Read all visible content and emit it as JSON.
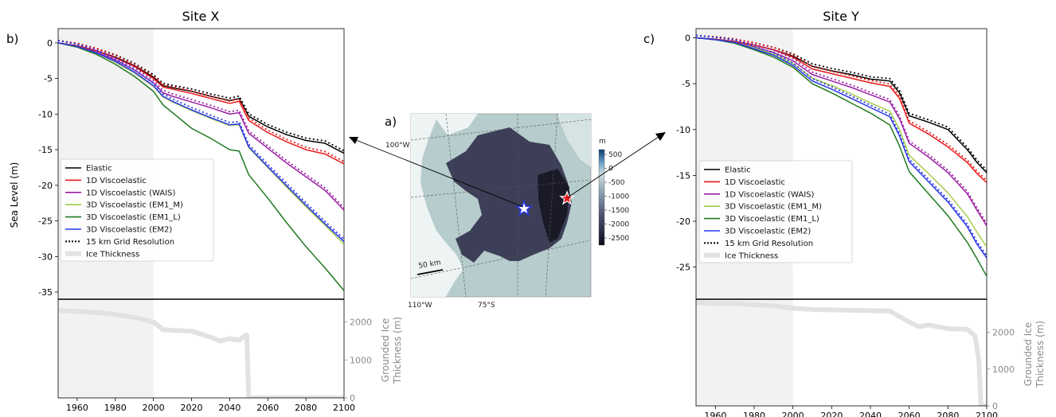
{
  "panels": {
    "b": {
      "label": "b)",
      "title": "Site X"
    },
    "a": {
      "label": "a)"
    },
    "c": {
      "label": "c)",
      "title": "Site Y"
    }
  },
  "ylabel": "Sea Level (m)",
  "ylabel_ice": "Grounded Ice Thickness (m)",
  "legend": [
    {
      "name": "Elastic",
      "color": "#000000",
      "style": "solid"
    },
    {
      "name": "1D Viscoelastic",
      "color": "#e8191b",
      "style": "solid"
    },
    {
      "name": "1D Viscoelastic (WAIS)",
      "color": "#9b1fa3",
      "style": "solid"
    },
    {
      "name": "3D Viscoelastic (EM1_M)",
      "color": "#a4cd4c",
      "style": "solid"
    },
    {
      "name": "3D Viscoelastic (EM1_L)",
      "color": "#1f7a1f",
      "style": "solid"
    },
    {
      "name": "3D Viscoelastic (EM2)",
      "color": "#2a36e8",
      "style": "solid"
    },
    {
      "name": "15 km Grid Resolution",
      "color": "#000000",
      "style": "dotted"
    },
    {
      "name": "Ice Thickness",
      "color": "#e2e2e2",
      "style": "thick"
    }
  ],
  "map": {
    "colorbar_unit": "m",
    "colorbar_ticks": [
      "500",
      "0",
      "-500",
      "-1000",
      "-1500",
      "-2000",
      "-2500"
    ],
    "labels": {
      "lon1": "100°W",
      "lon2": "110°W",
      "lat": "75°S",
      "scale": "50 km"
    }
  },
  "chart_data": [
    {
      "type": "line",
      "title": "Site X",
      "xlabel": "",
      "ylabel": "Sea Level (m)",
      "xlim": [
        1950,
        2100
      ],
      "ylim": [
        -36,
        2
      ],
      "xticks": [
        1960,
        1980,
        2000,
        2020,
        2040,
        2060,
        2080,
        2100
      ],
      "yticks": [
        0,
        -5,
        -10,
        -15,
        -20,
        -25,
        -30,
        -35
      ],
      "shaded_range": [
        1950,
        2000
      ],
      "x": [
        1950,
        1960,
        1970,
        1980,
        1990,
        2000,
        2005,
        2010,
        2020,
        2030,
        2040,
        2045,
        2050,
        2060,
        2070,
        2080,
        2090,
        2100
      ],
      "series": [
        {
          "name": "Elastic",
          "values": [
            0,
            -0.4,
            -1.1,
            -2.0,
            -3.2,
            -4.8,
            -6.0,
            -6.3,
            -6.8,
            -7.5,
            -8.1,
            -7.8,
            -10.3,
            -11.8,
            -12.9,
            -13.7,
            -14.1,
            -15.5
          ]
        },
        {
          "name": "1D Viscoelastic",
          "values": [
            0,
            -0.4,
            -1.1,
            -2.1,
            -3.3,
            -5.0,
            -6.2,
            -6.5,
            -7.1,
            -7.8,
            -8.5,
            -8.2,
            -10.9,
            -12.6,
            -13.9,
            -15.0,
            -15.6,
            -17.0
          ]
        },
        {
          "name": "1D Viscoelastic (WAIS)",
          "values": [
            0,
            -0.5,
            -1.3,
            -2.4,
            -3.8,
            -5.6,
            -7.0,
            -7.5,
            -8.3,
            -9.1,
            -10.0,
            -9.8,
            -12.7,
            -14.8,
            -16.9,
            -18.8,
            -20.7,
            -23.5
          ]
        },
        {
          "name": "3D Viscoelastic (EM1_M)",
          "values": [
            0,
            -0.5,
            -1.4,
            -2.7,
            -4.2,
            -6.1,
            -7.6,
            -8.3,
            -9.5,
            -10.6,
            -11.6,
            -11.5,
            -14.7,
            -17.5,
            -20.3,
            -23.0,
            -25.6,
            -28.3
          ]
        },
        {
          "name": "3D Viscoelastic (EM1_L)",
          "values": [
            0,
            -0.6,
            -1.6,
            -3.0,
            -4.7,
            -6.8,
            -8.7,
            -9.8,
            -12.0,
            -13.4,
            -15.0,
            -15.2,
            -18.5,
            -21.8,
            -25.3,
            -28.6,
            -31.6,
            -34.8
          ]
        },
        {
          "name": "3D Viscoelastic (EM2)",
          "values": [
            0,
            -0.5,
            -1.4,
            -2.6,
            -4.1,
            -6.0,
            -7.5,
            -8.2,
            -9.4,
            -10.5,
            -11.5,
            -11.4,
            -14.6,
            -17.4,
            -20.1,
            -22.8,
            -25.4,
            -27.9
          ]
        }
      ],
      "ice": {
        "ylim": [
          0,
          2600
        ],
        "yticks": [
          0,
          1000,
          2000
        ],
        "x": [
          1950,
          1960,
          1970,
          1980,
          1990,
          2000,
          2005,
          2010,
          2020,
          2030,
          2035,
          2040,
          2045,
          2048,
          2049,
          2050,
          2060,
          2080,
          2100
        ],
        "values": [
          2300,
          2280,
          2250,
          2200,
          2120,
          2000,
          1800,
          1780,
          1760,
          1600,
          1500,
          1560,
          1520,
          1640,
          1650,
          0,
          0,
          0,
          0
        ]
      }
    },
    {
      "type": "line",
      "title": "Site Y",
      "xlabel": "",
      "ylabel": "",
      "xlim": [
        1950,
        2100
      ],
      "ylim": [
        -28.5,
        1
      ],
      "xticks": [
        1960,
        1980,
        2000,
        2020,
        2040,
        2060,
        2080,
        2100
      ],
      "yticks": [
        0,
        -5,
        -10,
        -15,
        -20,
        -25
      ],
      "shaded_range": [
        1950,
        2000
      ],
      "x": [
        1950,
        1960,
        1970,
        1980,
        1990,
        2000,
        2010,
        2020,
        2030,
        2040,
        2050,
        2055,
        2060,
        2070,
        2080,
        2090,
        2095,
        2100
      ],
      "series": [
        {
          "name": "Elastic",
          "values": [
            0,
            -0.15,
            -0.4,
            -0.8,
            -1.3,
            -2.0,
            -3.1,
            -3.6,
            -4.0,
            -4.5,
            -4.7,
            -6.0,
            -8.5,
            -9.2,
            -10.0,
            -12.2,
            -13.6,
            -14.7
          ]
        },
        {
          "name": "1D Viscoelastic",
          "values": [
            0,
            -0.15,
            -0.4,
            -0.8,
            -1.3,
            -2.1,
            -3.4,
            -3.9,
            -4.4,
            -4.9,
            -5.3,
            -6.6,
            -9.3,
            -10.5,
            -11.9,
            -13.6,
            -14.8,
            -15.8
          ]
        },
        {
          "name": "1D Viscoelastic (WAIS)",
          "values": [
            0,
            -0.2,
            -0.5,
            -1.0,
            -1.6,
            -2.5,
            -4.0,
            -4.7,
            -5.4,
            -6.2,
            -7.0,
            -8.8,
            -11.5,
            -13.0,
            -14.7,
            -17.0,
            -18.8,
            -20.5
          ]
        },
        {
          "name": "3D Viscoelastic (EM1_M)",
          "values": [
            0,
            -0.2,
            -0.5,
            -1.1,
            -1.8,
            -2.8,
            -4.4,
            -5.2,
            -6.1,
            -7.1,
            -8.0,
            -10.0,
            -12.8,
            -14.8,
            -16.9,
            -19.5,
            -21.2,
            -22.8
          ]
        },
        {
          "name": "3D Viscoelastic (EM1_L)",
          "values": [
            0,
            -0.2,
            -0.6,
            -1.3,
            -2.1,
            -3.2,
            -5.0,
            -6.0,
            -7.1,
            -8.2,
            -9.5,
            -11.8,
            -14.6,
            -17.0,
            -19.4,
            -22.3,
            -24.1,
            -26.0
          ]
        },
        {
          "name": "3D Viscoelastic (EM2)",
          "values": [
            0,
            -0.2,
            -0.5,
            -1.2,
            -1.9,
            -3.0,
            -4.7,
            -5.6,
            -6.6,
            -7.6,
            -8.6,
            -10.7,
            -13.5,
            -15.7,
            -17.9,
            -20.6,
            -22.5,
            -24.0
          ]
        }
      ],
      "ice": {
        "ylim": [
          0,
          2900
        ],
        "yticks": [
          0,
          1000,
          2000
        ],
        "x": [
          1950,
          1970,
          1990,
          2000,
          2010,
          2030,
          2050,
          2060,
          2065,
          2070,
          2080,
          2090,
          2094,
          2096,
          2097,
          2100
        ],
        "values": [
          2800,
          2780,
          2720,
          2660,
          2620,
          2600,
          2580,
          2280,
          2150,
          2200,
          2100,
          2080,
          1900,
          1200,
          0,
          0
        ]
      }
    }
  ]
}
